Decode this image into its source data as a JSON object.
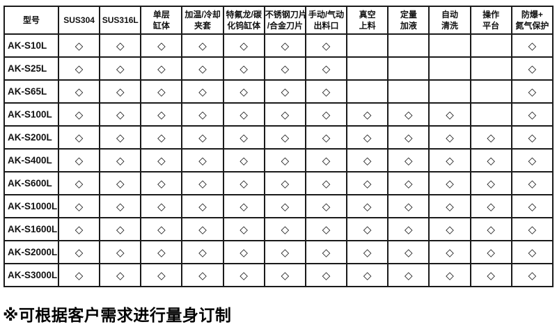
{
  "table": {
    "header": [
      "型号",
      "SUS304",
      "SUS316L",
      "单层\n缸体",
      "加温/冷却\n夹套",
      "特氟龙/碳\n化钨缸体",
      "不锈钢刀片\n/合金刀片",
      "手动/气动\n出料口",
      "真空\n上料",
      "定量\n加液",
      "自动\n清洗",
      "操作\n平台",
      "防爆+\n氮气保护"
    ],
    "diamond_symbol": "◇",
    "rows": [
      {
        "model": "AK-S10L",
        "features": [
          1,
          1,
          1,
          1,
          1,
          1,
          1,
          0,
          0,
          0,
          0,
          1
        ]
      },
      {
        "model": "AK-S25L",
        "features": [
          1,
          1,
          1,
          1,
          1,
          1,
          1,
          0,
          0,
          0,
          0,
          1
        ]
      },
      {
        "model": "AK-S65L",
        "features": [
          1,
          1,
          1,
          1,
          1,
          1,
          1,
          0,
          0,
          0,
          0,
          1
        ]
      },
      {
        "model": "AK-S100L",
        "features": [
          1,
          1,
          1,
          1,
          1,
          1,
          1,
          1,
          1,
          1,
          0,
          1
        ]
      },
      {
        "model": "AK-S200L",
        "features": [
          1,
          1,
          1,
          1,
          1,
          1,
          1,
          1,
          1,
          1,
          1,
          1
        ]
      },
      {
        "model": "AK-S400L",
        "features": [
          1,
          1,
          1,
          1,
          1,
          1,
          1,
          1,
          1,
          1,
          1,
          1
        ]
      },
      {
        "model": "AK-S600L",
        "features": [
          1,
          1,
          1,
          1,
          1,
          1,
          1,
          1,
          1,
          1,
          1,
          1
        ]
      },
      {
        "model": "AK-S1000L",
        "features": [
          1,
          1,
          1,
          1,
          1,
          1,
          1,
          1,
          1,
          1,
          1,
          1
        ]
      },
      {
        "model": "AK-S1600L",
        "features": [
          1,
          1,
          1,
          1,
          1,
          1,
          1,
          1,
          1,
          1,
          1,
          1
        ]
      },
      {
        "model": "AK-S2000L",
        "features": [
          1,
          1,
          1,
          1,
          1,
          1,
          1,
          1,
          1,
          1,
          1,
          1
        ]
      },
      {
        "model": "AK-S3000L",
        "features": [
          1,
          1,
          1,
          1,
          1,
          1,
          1,
          1,
          1,
          1,
          1,
          1
        ]
      }
    ]
  },
  "note": {
    "text": "※可根据客户需求进行量身订制"
  },
  "colors": {
    "border": "#1a1a1a",
    "text": "#111111",
    "background": "#ffffff"
  }
}
